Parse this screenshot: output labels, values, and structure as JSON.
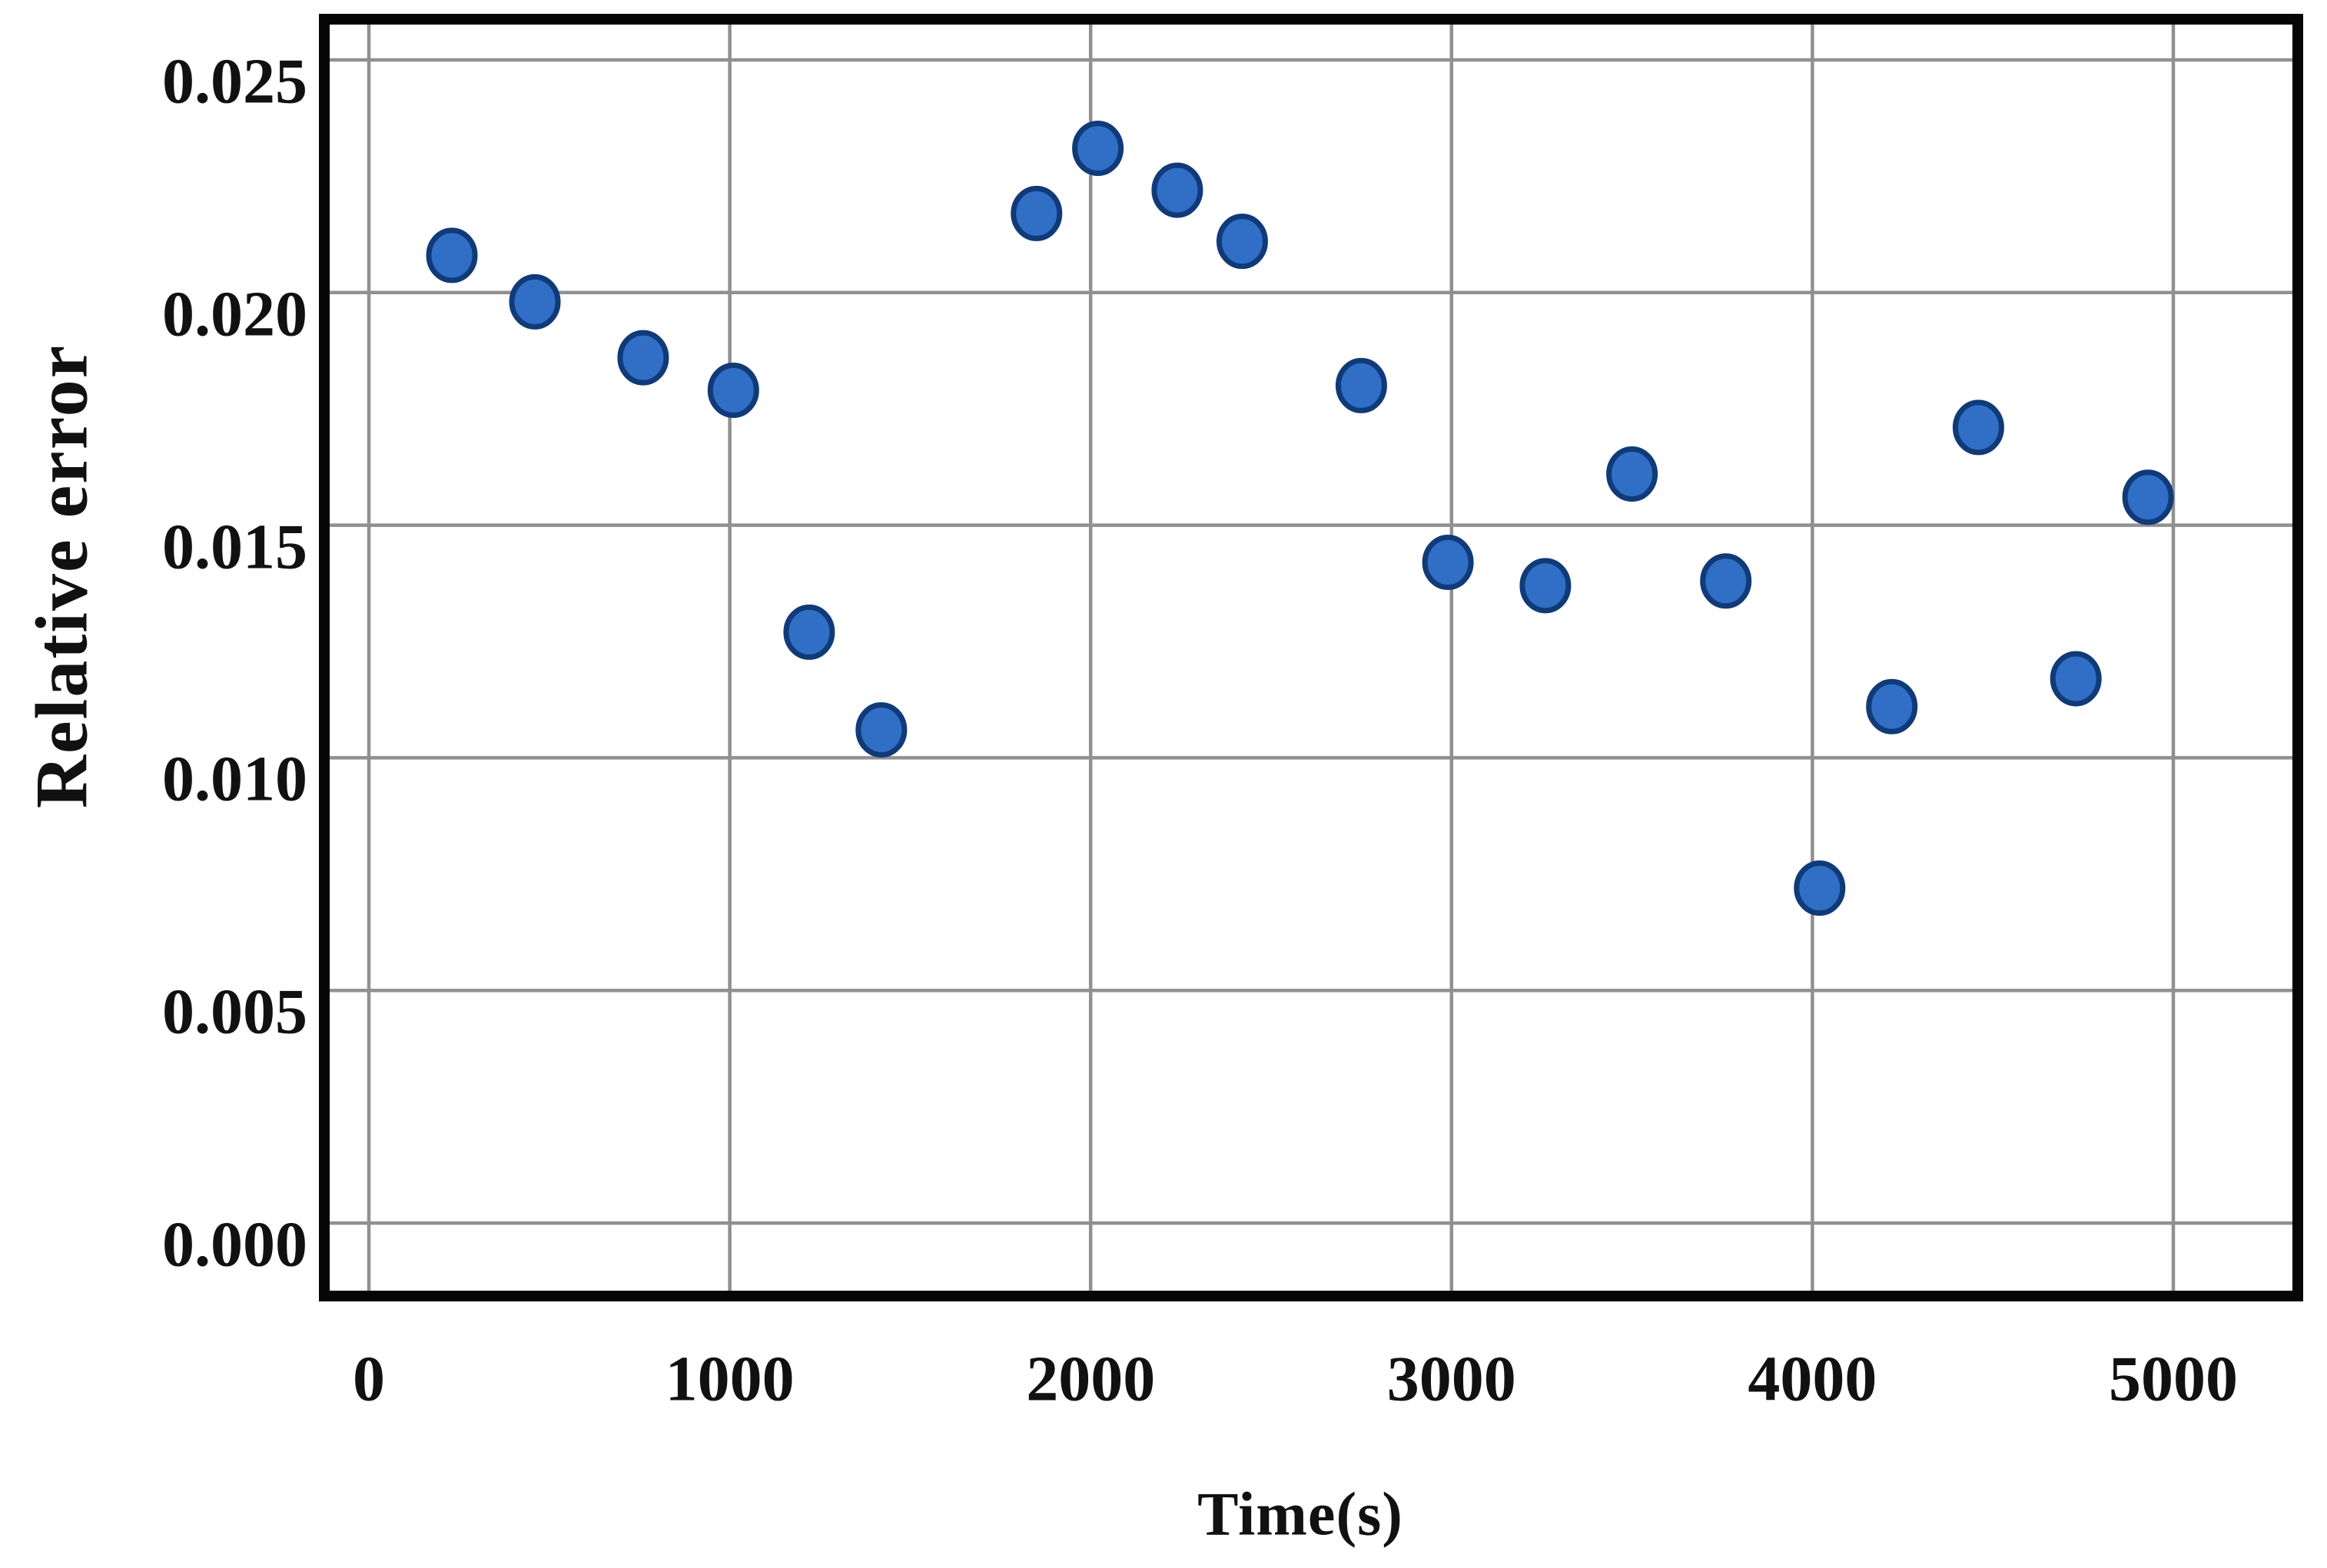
{
  "chart_data": {
    "type": "scatter",
    "title": "",
    "xlabel": "Time(s)",
    "ylabel": "Relative error",
    "xlim": [
      0,
      5000
    ],
    "ylim": [
      0.0,
      0.025
    ],
    "grid": true,
    "legend": false,
    "xticks": [
      {
        "value": 0,
        "label": "0"
      },
      {
        "value": 1000,
        "label": "1000"
      },
      {
        "value": 2000,
        "label": "2000"
      },
      {
        "value": 3000,
        "label": "3000"
      },
      {
        "value": 4000,
        "label": "4000"
      },
      {
        "value": 5000,
        "label": "5000"
      }
    ],
    "yticks": [
      {
        "value": 0.0,
        "label": "0.000"
      },
      {
        "value": 0.005,
        "label": "0.005"
      },
      {
        "value": 0.01,
        "label": "0.010"
      },
      {
        "value": 0.015,
        "label": "0.015"
      },
      {
        "value": 0.02,
        "label": "0.020"
      },
      {
        "value": 0.025,
        "label": "0.025"
      }
    ],
    "points": [
      {
        "x": 230,
        "y": 0.0208
      },
      {
        "x": 460,
        "y": 0.0198
      },
      {
        "x": 760,
        "y": 0.0186
      },
      {
        "x": 1010,
        "y": 0.0179
      },
      {
        "x": 1220,
        "y": 0.0127
      },
      {
        "x": 1420,
        "y": 0.0106
      },
      {
        "x": 1850,
        "y": 0.0217
      },
      {
        "x": 2020,
        "y": 0.0231
      },
      {
        "x": 2240,
        "y": 0.0222
      },
      {
        "x": 2420,
        "y": 0.0211
      },
      {
        "x": 2750,
        "y": 0.018
      },
      {
        "x": 2990,
        "y": 0.0142
      },
      {
        "x": 3260,
        "y": 0.0137
      },
      {
        "x": 3500,
        "y": 0.0161
      },
      {
        "x": 3760,
        "y": 0.0138
      },
      {
        "x": 4020,
        "y": 0.0072
      },
      {
        "x": 4220,
        "y": 0.0111
      },
      {
        "x": 4460,
        "y": 0.0171
      },
      {
        "x": 4730,
        "y": 0.0117
      },
      {
        "x": 4930,
        "y": 0.0156
      }
    ],
    "colors": {
      "marker_fill": "#306fc5",
      "marker_stroke": "#103a78",
      "grid": "#909090",
      "axis_border": "#060606",
      "background": "#ffffff",
      "text": "#111111"
    }
  }
}
